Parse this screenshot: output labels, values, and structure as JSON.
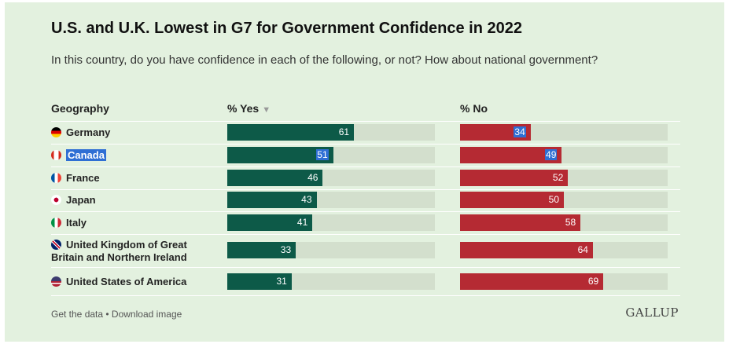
{
  "title": "U.S. and U.K. Lowest in G7 for Government Confidence in 2022",
  "subtitle": "In this country, do you have confidence in each of the following, or not? How about national government?",
  "headers": {
    "geography": "Geography",
    "yes": "% Yes",
    "sort_icon": "sort-down-icon",
    "no": "% No"
  },
  "footer": {
    "get_data": "Get the data",
    "sep": " • ",
    "download": "Download image"
  },
  "brand": "GALLUP",
  "colors": {
    "yes": "#0d5a48",
    "no": "#b52a33",
    "track": "#d3dfcd",
    "background": "#e3f1df"
  },
  "chart_data": {
    "type": "bar",
    "orientation": "horizontal",
    "xlim": [
      0,
      100
    ],
    "categories": [
      "Germany",
      "Canada",
      "France",
      "Japan",
      "Italy",
      "United Kingdom of Great Britain and Northern Ireland",
      "United States of America"
    ],
    "series": [
      {
        "name": "% Yes",
        "values": [
          61,
          51,
          46,
          43,
          41,
          33,
          31
        ]
      },
      {
        "name": "% No",
        "values": [
          34,
          49,
          52,
          50,
          58,
          64,
          69
        ]
      }
    ],
    "flags": [
      "germany-flag-icon",
      "canada-flag-icon",
      "france-flag-icon",
      "japan-flag-icon",
      "italy-flag-icon",
      "uk-flag-icon",
      "usa-flag-icon"
    ]
  }
}
